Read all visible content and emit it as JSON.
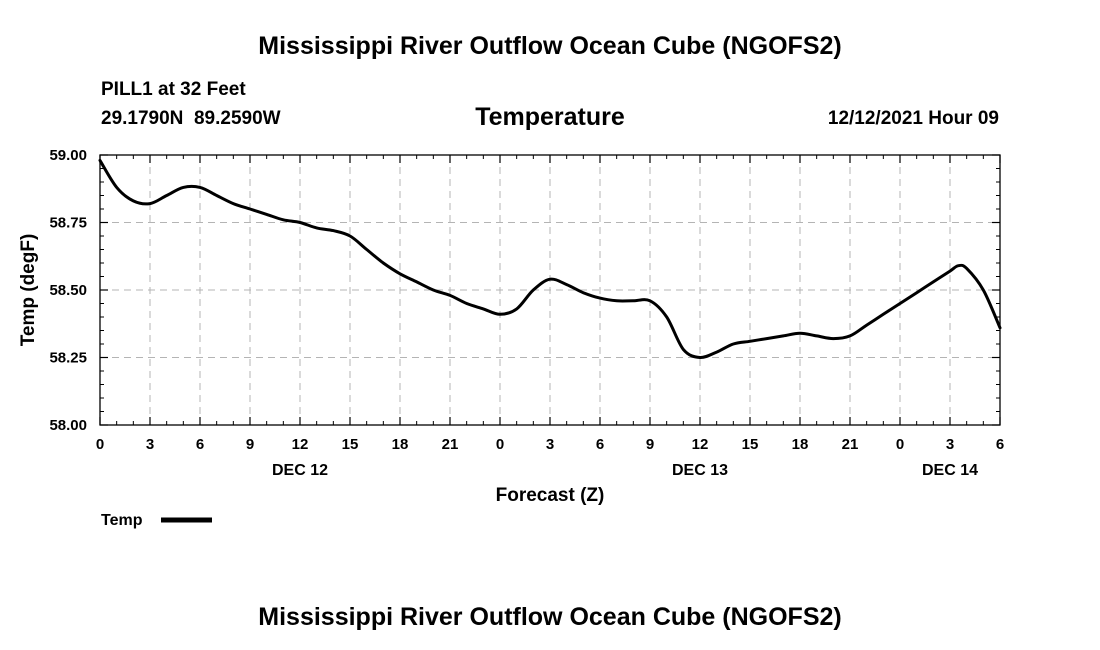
{
  "chart_data": {
    "type": "line",
    "title": "Mississippi River Outflow Ocean Cube (NGOFS2)",
    "footer_title": "Mississippi River Outflow Ocean Cube (NGOFS2)",
    "station": "PILL1 at 32 Feet",
    "coordinates": "29.1790N  89.2590W",
    "subtitle": "Temperature",
    "datetime": "12/12/2021 Hour 09",
    "xlabel": "Forecast (Z)",
    "ylabel": "Temp (degF)",
    "ylim": [
      58.0,
      59.0
    ],
    "xlim": [
      0,
      54
    ],
    "y_ticks": [
      "58.00",
      "58.25",
      "58.50",
      "58.75",
      "59.00"
    ],
    "y_tick_values": [
      58.0,
      58.25,
      58.5,
      58.75,
      59.0
    ],
    "x_ticks": [
      {
        "hour": 0,
        "label": "0"
      },
      {
        "hour": 3,
        "label": "3"
      },
      {
        "hour": 6,
        "label": "6"
      },
      {
        "hour": 9,
        "label": "9"
      },
      {
        "hour": 12,
        "label": "12"
      },
      {
        "hour": 15,
        "label": "15"
      },
      {
        "hour": 18,
        "label": "18"
      },
      {
        "hour": 21,
        "label": "21"
      },
      {
        "hour": 24,
        "label": "0"
      },
      {
        "hour": 27,
        "label": "3"
      },
      {
        "hour": 30,
        "label": "6"
      },
      {
        "hour": 33,
        "label": "9"
      },
      {
        "hour": 36,
        "label": "12"
      },
      {
        "hour": 39,
        "label": "15"
      },
      {
        "hour": 42,
        "label": "18"
      },
      {
        "hour": 45,
        "label": "21"
      },
      {
        "hour": 48,
        "label": "0"
      },
      {
        "hour": 51,
        "label": "3"
      },
      {
        "hour": 54,
        "label": "6"
      }
    ],
    "day_labels": [
      {
        "hour": 12,
        "label": "DEC 12"
      },
      {
        "hour": 36,
        "label": "DEC 13"
      },
      {
        "hour": 51,
        "label": "DEC 14"
      }
    ],
    "grid": true,
    "legend": {
      "placement": "bottom-left",
      "label": "Temp"
    },
    "series": [
      {
        "name": "Temp",
        "color": "#000000",
        "x": [
          0,
          1,
          2,
          3,
          4,
          5,
          6,
          7,
          8,
          9,
          10,
          11,
          12,
          13,
          14,
          15,
          16,
          17,
          18,
          19,
          20,
          21,
          22,
          23,
          24,
          25,
          26,
          27,
          28,
          29,
          30,
          31,
          32,
          33,
          34,
          35,
          36,
          37,
          38,
          39,
          40,
          41,
          42,
          43,
          44,
          45,
          46,
          47,
          48,
          49,
          50,
          51,
          51.5,
          52,
          53,
          54
        ],
        "values": [
          58.98,
          58.88,
          58.83,
          58.82,
          58.85,
          58.88,
          58.88,
          58.85,
          58.82,
          58.8,
          58.78,
          58.76,
          58.75,
          58.73,
          58.72,
          58.7,
          58.65,
          58.6,
          58.56,
          58.53,
          58.5,
          58.48,
          58.45,
          58.43,
          58.41,
          58.43,
          58.5,
          58.54,
          58.52,
          58.49,
          58.47,
          58.46,
          58.46,
          58.46,
          58.4,
          58.28,
          58.25,
          58.27,
          58.3,
          58.31,
          58.32,
          58.33,
          58.34,
          58.33,
          58.32,
          58.33,
          58.37,
          58.41,
          58.45,
          58.49,
          58.53,
          58.57,
          58.59,
          58.58,
          58.5,
          58.36
        ]
      }
    ]
  }
}
